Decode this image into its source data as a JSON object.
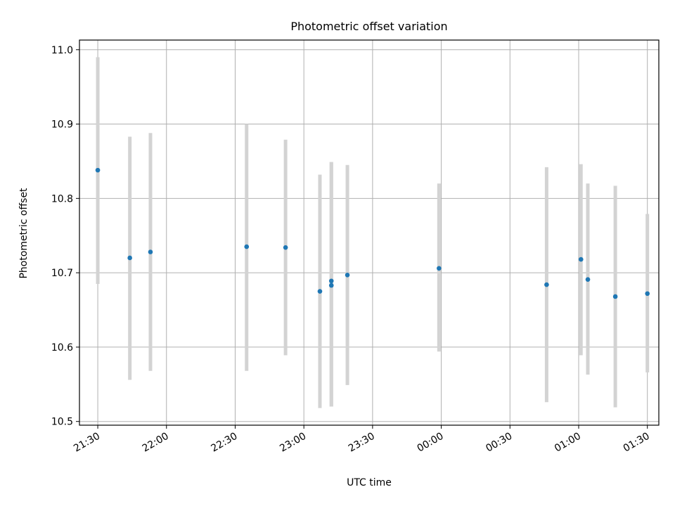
{
  "chart_data": {
    "type": "scatter",
    "title": "Photometric offset variation",
    "xlabel": "UTC time",
    "ylabel": "Photometric offset",
    "x_ticks": [
      "21:30",
      "22:00",
      "22:30",
      "23:00",
      "23:30",
      "00:00",
      "00:30",
      "01:00",
      "01:30"
    ],
    "y_ticks": [
      "10.5",
      "10.6",
      "10.7",
      "10.8",
      "10.9",
      "11.0"
    ],
    "xlim": [
      "21:22",
      "01:35"
    ],
    "ylim": [
      10.495,
      11.013
    ],
    "grid": true,
    "marker_color": "#1f77b4",
    "errorbar_color": "#d3d3d3",
    "points": [
      {
        "x": "21:30",
        "y": 10.838,
        "ylow": 10.685,
        "yhigh": 10.99
      },
      {
        "x": "21:44",
        "y": 10.72,
        "ylow": 10.556,
        "yhigh": 10.883
      },
      {
        "x": "21:53",
        "y": 10.728,
        "ylow": 10.568,
        "yhigh": 10.888
      },
      {
        "x": "22:35",
        "y": 10.735,
        "ylow": 10.568,
        "yhigh": 10.9
      },
      {
        "x": "22:52",
        "y": 10.734,
        "ylow": 10.589,
        "yhigh": 10.879
      },
      {
        "x": "23:07",
        "y": 10.675,
        "ylow": 10.518,
        "yhigh": 10.832
      },
      {
        "x": "23:12",
        "y": 10.683,
        "ylow": 10.52,
        "yhigh": 10.849
      },
      {
        "x": "23:12",
        "y": 10.689,
        "ylow": 10.52,
        "yhigh": 10.849
      },
      {
        "x": "23:19",
        "y": 10.697,
        "ylow": 10.549,
        "yhigh": 10.845
      },
      {
        "x": "23:59",
        "y": 10.706,
        "ylow": 10.594,
        "yhigh": 10.82
      },
      {
        "x": "00:46",
        "y": 10.684,
        "ylow": 10.526,
        "yhigh": 10.842
      },
      {
        "x": "01:01",
        "y": 10.718,
        "ylow": 10.589,
        "yhigh": 10.846
      },
      {
        "x": "01:04",
        "y": 10.691,
        "ylow": 10.563,
        "yhigh": 10.82
      },
      {
        "x": "01:16",
        "y": 10.668,
        "ylow": 10.519,
        "yhigh": 10.817
      },
      {
        "x": "01:30",
        "y": 10.672,
        "ylow": 10.566,
        "yhigh": 10.779
      }
    ]
  }
}
